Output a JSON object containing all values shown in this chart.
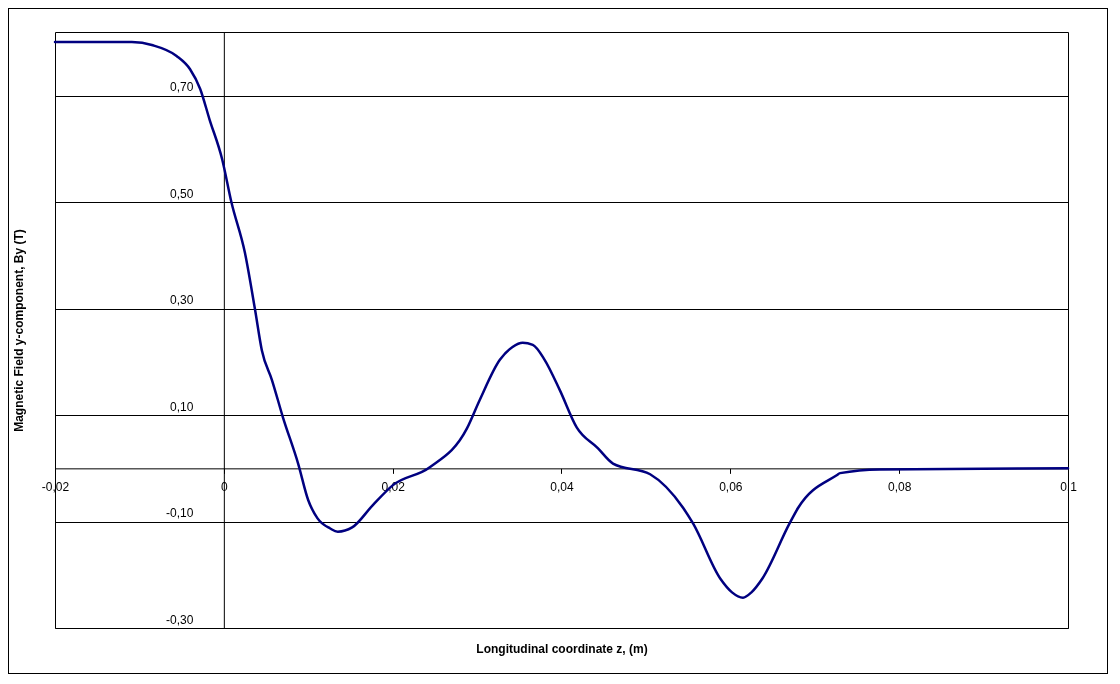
{
  "chart_data": {
    "type": "line",
    "xlabel": "Longitudinal coordinate z, (m)",
    "ylabel": "Magnetic Field y-component, By (T)",
    "x": [
      -0.02,
      -0.0109,
      -0.0084,
      -0.0056,
      -0.004,
      -0.0028,
      -0.0017,
      -0.0002,
      0.0009,
      0.0025,
      0.0037,
      0.0045,
      0.0057,
      0.007,
      0.0088,
      0.01,
      0.0111,
      0.0126,
      0.0135,
      0.0152,
      0.0176,
      0.02,
      0.0244,
      0.0288,
      0.0303,
      0.0327,
      0.0342,
      0.0354,
      0.0366,
      0.038,
      0.0398,
      0.0418,
      0.0443,
      0.0461,
      0.0505,
      0.0544,
      0.0556,
      0.0588,
      0.0602,
      0.0615,
      0.0625,
      0.0638,
      0.067,
      0.068,
      0.0726,
      0.073,
      0.0777,
      0.1
    ],
    "series": [
      {
        "color": "#000080",
        "values": [
          0.801,
          0.801,
          0.795,
          0.775,
          0.75,
          0.713,
          0.656,
          0.581,
          0.5,
          0.405,
          0.298,
          0.222,
          0.166,
          0.096,
          0.009,
          -0.06,
          -0.094,
          -0.113,
          -0.119,
          -0.111,
          -0.07,
          -0.032,
          0.002,
          0.075,
          0.128,
          0.204,
          0.228,
          0.236,
          0.232,
          0.204,
          0.147,
          0.077,
          0.038,
          0.009,
          -0.011,
          -0.074,
          -0.104,
          -0.207,
          -0.233,
          -0.243,
          -0.233,
          -0.207,
          -0.104,
          -0.075,
          -0.013,
          -0.009,
          -0.002,
          0
        ]
      }
    ],
    "xlim": [
      -0.02,
      0.1
    ],
    "ylim": [
      -0.3,
      0.82
    ],
    "xticks": [
      {
        "value": -0.02,
        "label": "-0,02"
      },
      0,
      {
        "value": 0.02,
        "label": "0,02"
      },
      {
        "value": 0.04,
        "label": "0,04"
      },
      {
        "value": 0.06,
        "label": "0,06"
      },
      {
        "value": 0.08,
        "label": "0,08"
      },
      {
        "value": 0.1,
        "label": "0,1"
      }
    ],
    "yticks": [
      {
        "value": -0.3,
        "label": "-0,30"
      },
      {
        "value": -0.1,
        "label": "-0,10"
      },
      {
        "value": 0.1,
        "label": "0,10"
      },
      {
        "value": 0.3,
        "label": "0,30"
      },
      {
        "value": 0.5,
        "label": "0,50"
      },
      {
        "value": 0.7,
        "label": "0,70"
      }
    ],
    "grid": "y",
    "marker": "none",
    "line_style": "solid"
  }
}
